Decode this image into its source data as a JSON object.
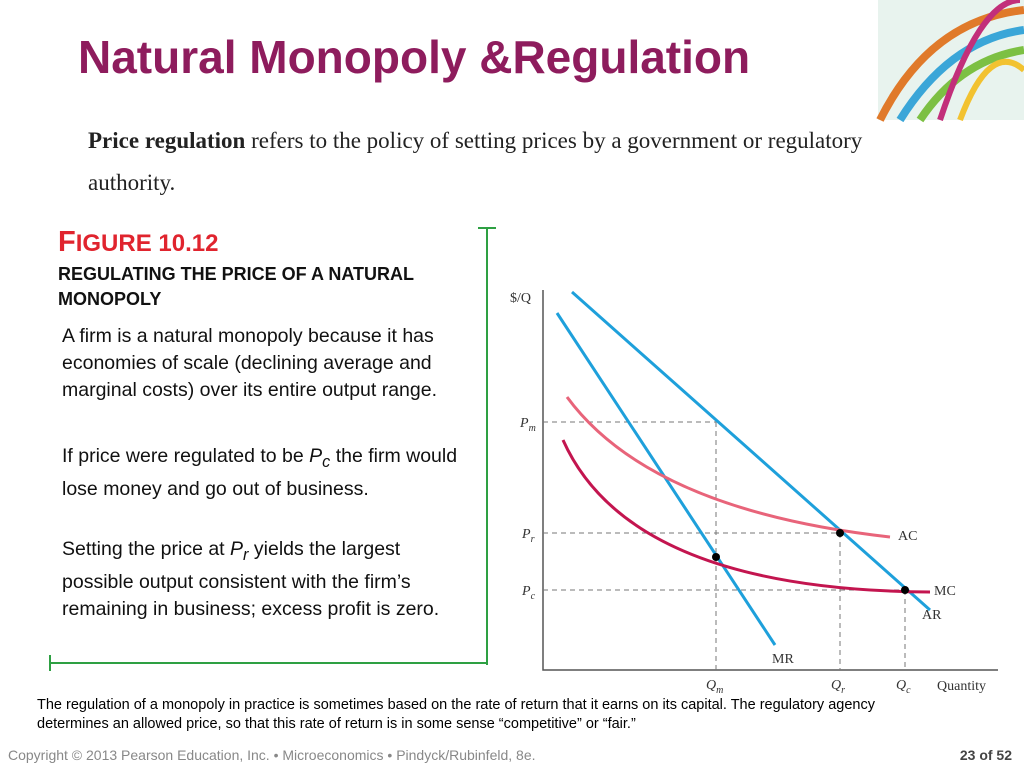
{
  "header": {
    "title": "Natural Monopoly &Regulation"
  },
  "definition": {
    "term": "Price regulation",
    "text": " refers to the policy of setting prices by a government or regulatory authority."
  },
  "figure": {
    "number": "FIGURE 10.12",
    "subtitle": "REGULATING THE PRICE OF A NATURAL MONOPOLY"
  },
  "paragraphs": [
    {
      "before": "A firm is a natural monopoly because it has economies of scale (declining average and marginal costs) over its entire output range."
    },
    {
      "before": "If price were regulated to be ",
      "symbol": "P",
      "sub": "c",
      "after": " the firm would lose money and go out of business."
    },
    {
      "before": "Setting the price at ",
      "symbol": "P",
      "sub": "r",
      "after": " yields the largest possible output consistent with the firm’s remaining in business; excess profit is zero."
    }
  ],
  "graph": {
    "y_axis_label": "$/Q",
    "x_axis_label": "Quantity",
    "price_labels": [
      {
        "symbol": "P",
        "sub": "m"
      },
      {
        "symbol": "P",
        "sub": "r"
      },
      {
        "symbol": "P",
        "sub": "c"
      }
    ],
    "quantity_labels": [
      {
        "symbol": "Q",
        "sub": "m"
      },
      {
        "symbol": "Q",
        "sub": "r"
      },
      {
        "symbol": "Q",
        "sub": "c"
      }
    ],
    "curve_labels": [
      "AC",
      "MC",
      "AR",
      "MR"
    ]
  },
  "caption": "The regulation of a monopoly in practice is sometimes based on the rate of return that it earns on its capital. The regulatory agency determines an allowed price, so that this rate of return is in some sense “competitive” or “fair.”",
  "footer": {
    "copyright": "Copyright © 2013  Pearson Education, Inc. • Microeconomics • Pindyck/Rubinfeld, 8e.",
    "page": "23 of 52"
  }
}
